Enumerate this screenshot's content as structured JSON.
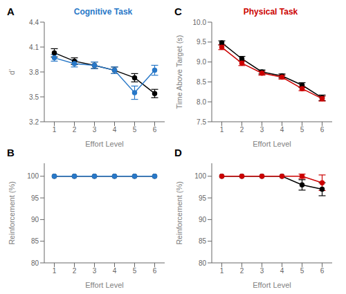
{
  "chart_data": [
    {
      "type": "line",
      "title": "Cognitive Task",
      "annotations": [
        "A"
      ],
      "xlabel": "Effort Level",
      "ylabel": "d’",
      "x": [
        1,
        2,
        3,
        4,
        5,
        6
      ],
      "xlim": [
        0.5,
        6.5
      ],
      "xticks": [
        1,
        2,
        3,
        4,
        5,
        6
      ],
      "ylim": [
        3.2,
        4.4
      ],
      "yticks": [
        3.2,
        3.5,
        3.8,
        4.1,
        4.4
      ],
      "grid": false,
      "marker": "circle",
      "line_style": "solid",
      "series": [
        {
          "color": "#000000",
          "values": [
            4.03,
            3.93,
            3.88,
            3.82,
            3.73,
            3.54
          ],
          "errors": [
            0.05,
            0.04,
            0.04,
            0.04,
            0.05,
            0.05
          ]
        },
        {
          "color": "#2878C8",
          "values": [
            3.97,
            3.9,
            3.88,
            3.82,
            3.55,
            3.82
          ],
          "errors": [
            0.04,
            0.04,
            0.04,
            0.04,
            0.08,
            0.06
          ]
        }
      ]
    },
    {
      "type": "line",
      "annotations": [
        "B"
      ],
      "xlabel": "Effort Level",
      "ylabel": "Reinforcement (%)",
      "x": [
        1,
        2,
        3,
        4,
        5,
        6
      ],
      "xlim": [
        0.5,
        6.5
      ],
      "xticks": [
        1,
        2,
        3,
        4,
        5,
        6
      ],
      "ylim": [
        80,
        103
      ],
      "yticks": [
        80,
        85,
        90,
        95,
        100
      ],
      "grid": false,
      "marker": "circle",
      "line_style": "solid",
      "series": [
        {
          "color": "#000000",
          "values": [
            100,
            100,
            100,
            100,
            100,
            100
          ],
          "errors": [
            0.0,
            0.0,
            0.0,
            0.0,
            0.0,
            0.0
          ]
        },
        {
          "color": "#2878C8",
          "values": [
            100,
            100,
            100,
            100,
            100,
            100
          ],
          "errors": [
            0.0,
            0.0,
            0.0,
            0.0,
            0.0,
            0.0
          ]
        }
      ]
    },
    {
      "type": "line",
      "title": "Physical Task",
      "annotations": [
        "C"
      ],
      "xlabel": "Effort Level",
      "ylabel": "Time Above Target (s)",
      "x": [
        1,
        2,
        3,
        4,
        5,
        6
      ],
      "xlim": [
        0.5,
        6.5
      ],
      "xticks": [
        1,
        2,
        3,
        4,
        5,
        6
      ],
      "ylim": [
        7.5,
        10.0
      ],
      "yticks": [
        7.5,
        {
          "value": 8.0,
          "label": "8.0"
        },
        8.5,
        {
          "value": 9.0,
          "label": "9.0"
        },
        9.5,
        {
          "value": 10.0,
          "label": "10.0"
        }
      ],
      "grid": false,
      "marker": "circle",
      "line_style": "solid",
      "series": [
        {
          "color": "#000000",
          "values": [
            9.48,
            9.08,
            8.75,
            8.65,
            8.42,
            8.1
          ],
          "errors": [
            0.05,
            0.06,
            0.05,
            0.05,
            0.06,
            0.07
          ]
        },
        {
          "color": "#CC0000",
          "values": [
            9.37,
            8.97,
            8.72,
            8.62,
            8.33,
            8.08
          ],
          "errors": [
            0.06,
            0.06,
            0.05,
            0.05,
            0.05,
            0.06
          ]
        }
      ]
    },
    {
      "type": "line",
      "annotations": [
        "D"
      ],
      "xlabel": "Effort Level",
      "ylabel": "Reinforcement (%)",
      "x": [
        1,
        2,
        3,
        4,
        5,
        6
      ],
      "xlim": [
        0.5,
        6.5
      ],
      "xticks": [
        1,
        2,
        3,
        4,
        5,
        6
      ],
      "ylim": [
        80,
        103
      ],
      "yticks": [
        80,
        85,
        90,
        95,
        100
      ],
      "grid": false,
      "marker": "circle",
      "line_style": "solid",
      "series": [
        {
          "color": "#000000",
          "values": [
            100.0,
            100.0,
            100.0,
            100.0,
            98.0,
            97.0
          ],
          "errors": [
            0.0,
            0.0,
            0.0,
            0.0,
            1.2,
            1.5
          ]
        },
        {
          "color": "#CC0000",
          "values": [
            100.0,
            100.0,
            100.0,
            100.0,
            100.0,
            98.5
          ],
          "errors": [
            0.0,
            0.0,
            0.0,
            0.0,
            0.5,
            1.8
          ]
        }
      ]
    }
  ]
}
